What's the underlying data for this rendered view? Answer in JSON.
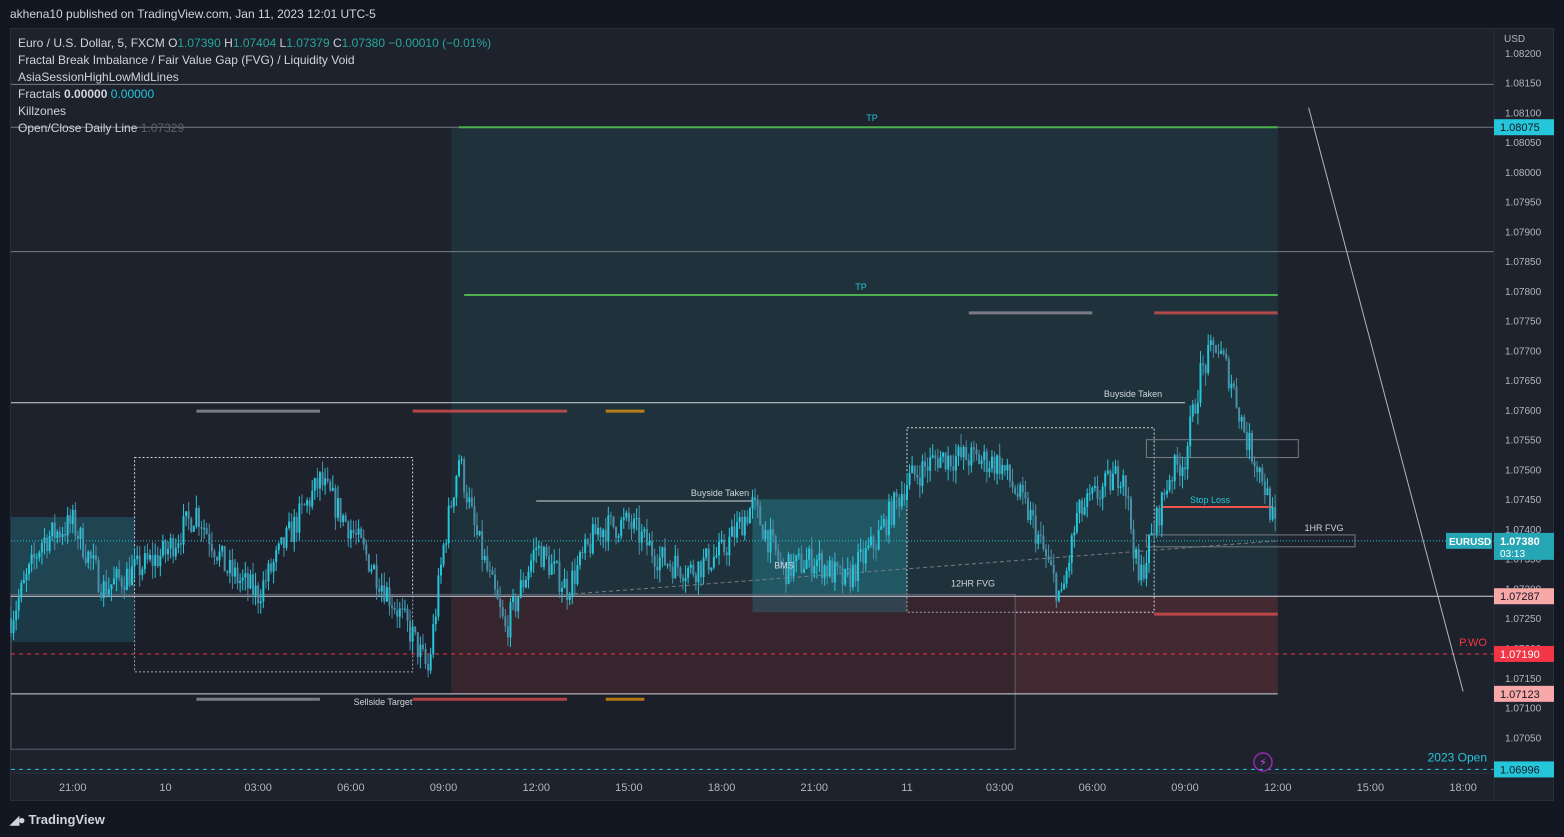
{
  "header": {
    "published": "akhena10 published on TradingView.com, Jan 11, 2023 12:01 UTC-5"
  },
  "legend": {
    "symbol": "Euro / U.S. Dollar, 5, FXCM",
    "o_label": "O",
    "o_value": "1.07390",
    "h_label": "H",
    "h_value": "1.07404",
    "l_label": "L",
    "l_value": "1.07379",
    "c_label": "C",
    "c_value": "1.07380",
    "change": "−0.00010 (−0.01%)",
    "indicators": [
      "Fractal Break Imbalance / Fair Value Gap (FVG) / Liquidity Void",
      "AsiaSessionHighLowMidLines"
    ],
    "fractals_label": "Fractals",
    "fractals_v1": "0.00000",
    "fractals_v2": "0.00000",
    "killzones": "Killzones",
    "openclose_label": "Open/Close Daily Line",
    "openclose_value": "1.07329"
  },
  "axis": {
    "currency": "USD",
    "y_ticks": [
      "1.08200",
      "1.08150",
      "1.08100",
      "1.08050",
      "1.08000",
      "1.07950",
      "1.07900",
      "1.07850",
      "1.07800",
      "1.07750",
      "1.07700",
      "1.07650",
      "1.07600",
      "1.07550",
      "1.07500",
      "1.07450",
      "1.07400",
      "1.07350",
      "1.07300",
      "1.07250",
      "1.07200",
      "1.07150",
      "1.07100",
      "1.07050"
    ],
    "x_ticks": [
      "21:00",
      "10",
      "03:00",
      "06:00",
      "09:00",
      "12:00",
      "15:00",
      "18:00",
      "21:00",
      "11",
      "03:00",
      "06:00",
      "09:00",
      "12:00",
      "15:00",
      "18:00"
    ]
  },
  "price_labels": {
    "tp_top": "1.08075",
    "eurusd_tag": "EURUSD",
    "last": "1.07380",
    "countdown": "03:13",
    "level_a": "1.07287",
    "pwo": "1.07190",
    "level_b": "1.07123",
    "open_2023": "1.06996"
  },
  "annotations": {
    "tp1": "TP",
    "tp2": "TP",
    "buyside1": "Buyside Taken",
    "buyside2": "Buyside Taken",
    "stop_loss": "Stop Loss",
    "fvg_1hr": "1HR FVG",
    "fvg_12hr": "12HR FVG",
    "sellside": "Sellside Target",
    "bms": "BMS",
    "pwo": "P.WO",
    "open2023": "2023 Open"
  },
  "colors": {
    "background": "#1e222d",
    "up": "#26c6da",
    "down": "#4a8fa8",
    "profit_zone": "#26a69a",
    "loss_zone": "#ef5350",
    "tp_line": "#4caf50",
    "pwo": "#f23645"
  },
  "footer": {
    "brand": "TradingView"
  },
  "chart_data": {
    "type": "candlestick",
    "title": "Euro / U.S. Dollar, 5, FXCM",
    "timeframe": "5",
    "ohlc_last": {
      "open": 1.0739,
      "high": 1.07404,
      "low": 1.07379,
      "close": 1.0738
    },
    "ylim": [
      1.0699,
      1.0824
    ],
    "x_start": "Jan 9 19:00",
    "x_end": "Jan 11 19:00",
    "levels": [
      {
        "name": "TP",
        "value": 1.08075
      },
      {
        "name": "TP",
        "value": 1.07793
      },
      {
        "name": "EURUSD",
        "value": 1.0738
      },
      {
        "name": "",
        "value": 1.07287
      },
      {
        "name": "P.WO",
        "value": 1.0719
      },
      {
        "name": "",
        "value": 1.07123
      },
      {
        "name": "2023 Open",
        "value": 1.06996
      }
    ],
    "price_path": [
      [
        "Jan 9 19:00",
        1.0725
      ],
      [
        "Jan 9 20:00",
        1.0738
      ],
      [
        "Jan 9 21:00",
        1.0741
      ],
      [
        "Jan 9 22:00",
        1.073
      ],
      [
        "Jan 10 00:00",
        1.0736
      ],
      [
        "Jan 10 01:00",
        1.0743
      ],
      [
        "Jan 10 02:00",
        1.0733
      ],
      [
        "Jan 10 03:00",
        1.0729
      ],
      [
        "Jan 10 04:00",
        1.0739
      ],
      [
        "Jan 10 05:00",
        1.0748
      ],
      [
        "Jan 10 06:00",
        1.074
      ],
      [
        "Jan 10 07:00",
        1.0731
      ],
      [
        "Jan 10 08:00",
        1.0722
      ],
      [
        "Jan 10 08:30",
        1.0716
      ],
      [
        "Jan 10 09:00",
        1.0737
      ],
      [
        "Jan 10 09:30",
        1.0752
      ],
      [
        "Jan 10 10:00",
        1.074
      ],
      [
        "Jan 10 11:00",
        1.0723
      ],
      [
        "Jan 10 12:00",
        1.0737
      ],
      [
        "Jan 10 13:00",
        1.073
      ],
      [
        "Jan 10 14:00",
        1.074
      ],
      [
        "Jan 10 15:00",
        1.0741
      ],
      [
        "Jan 10 16:00",
        1.0735
      ],
      [
        "Jan 10 17:00",
        1.0733
      ],
      [
        "Jan 10 18:00",
        1.0736
      ],
      [
        "Jan 10 19:00",
        1.0744
      ],
      [
        "Jan 10 20:00",
        1.0733
      ],
      [
        "Jan 10 21:00",
        1.0735
      ],
      [
        "Jan 10 22:00",
        1.0731
      ],
      [
        "Jan 10 23:00",
        1.0738
      ],
      [
        "Jan 11 00:00",
        1.0748
      ],
      [
        "Jan 11 01:00",
        1.0752
      ],
      [
        "Jan 11 02:00",
        1.0752
      ],
      [
        "Jan 11 03:00",
        1.0751
      ],
      [
        "Jan 11 04:00",
        1.0742
      ],
      [
        "Jan 11 05:00",
        1.0728
      ],
      [
        "Jan 11 05:30",
        1.0742
      ],
      [
        "Jan 11 06:00",
        1.0745
      ],
      [
        "Jan 11 07:00",
        1.075
      ],
      [
        "Jan 11 07:30",
        1.0731
      ],
      [
        "Jan 11 08:00",
        1.074
      ],
      [
        "Jan 11 08:30",
        1.0749
      ],
      [
        "Jan 11 09:00",
        1.0752
      ],
      [
        "Jan 11 09:30",
        1.0766
      ],
      [
        "Jan 11 10:00",
        1.0771
      ],
      [
        "Jan 11 10:30",
        1.0765
      ],
      [
        "Jan 11 11:00",
        1.0755
      ],
      [
        "Jan 11 11:30",
        1.0749
      ],
      [
        "Jan 11 12:00",
        1.0738
      ]
    ]
  }
}
